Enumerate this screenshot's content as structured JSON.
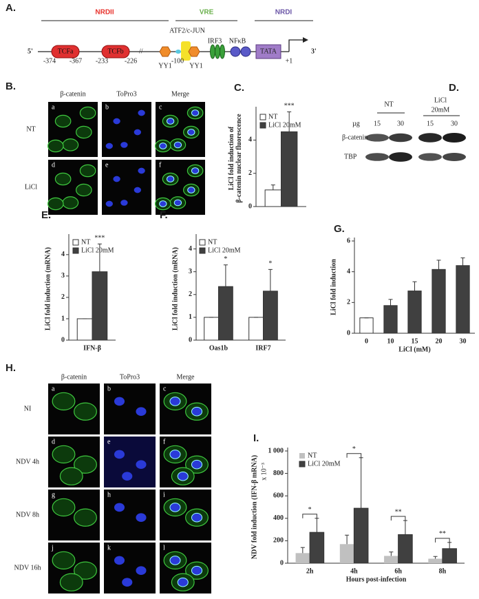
{
  "panel_a": {
    "label": "A.",
    "regions": [
      "NRDII",
      "VRE",
      "NRDI"
    ],
    "ends": [
      "5'",
      "3'"
    ],
    "boxes": [
      "TCFa",
      "TCFb",
      "TATA"
    ],
    "factors": [
      "ATF2/c-JUN",
      "IRF3",
      "NFκB",
      "YY1",
      "YY1"
    ],
    "positions": [
      "-374",
      "-367",
      "-233",
      "-226",
      "-100",
      "+1"
    ]
  },
  "panel_b": {
    "label": "B.",
    "columns": [
      "β-catenin",
      "ToPro3",
      "Merge"
    ],
    "rows": [
      "NT",
      "LiCl"
    ],
    "letters": [
      "a",
      "b",
      "c",
      "d",
      "e",
      "f"
    ]
  },
  "panel_d": {
    "label": "D.",
    "groups": [
      "NT",
      "LiCl"
    ],
    "group_note": "20mM",
    "unit": "µg",
    "lanes": [
      "15",
      "30",
      "15",
      "30"
    ],
    "rows": [
      "β-catenin",
      "TBP"
    ]
  },
  "panel_h": {
    "label": "H.",
    "columns": [
      "β-catenin",
      "ToPro3",
      "Merge"
    ],
    "rows": [
      "NI",
      "NDV 4h",
      "NDV 8h",
      "NDV 16h"
    ],
    "letters": [
      "a",
      "b",
      "c",
      "d",
      "e",
      "f",
      "g",
      "h",
      "i",
      "j",
      "k",
      "l"
    ]
  },
  "chart_data": [
    {
      "type": "bar",
      "label": "C.",
      "ylabel": [
        "LiCl fold induction of",
        "β-catenin nuclear fluorescence"
      ],
      "categories": [
        null
      ],
      "series": [
        {
          "name": "NT",
          "color": "#ffffff",
          "values": [
            1
          ],
          "errors": [
            0.3
          ]
        },
        {
          "name": "LiCl 20mM",
          "color": "#404040",
          "values": [
            4.5
          ],
          "errors": [
            1.2
          ]
        }
      ],
      "annotations": [
        "***"
      ],
      "ylim": [
        0,
        5.8
      ],
      "yticks": [
        0,
        2,
        4
      ],
      "legend": true
    },
    {
      "type": "bar",
      "label": "E.",
      "ylabel": [
        "LiCl fold induction (mRNA)"
      ],
      "categories": [
        "IFN-β"
      ],
      "series": [
        {
          "name": "NT",
          "color": "#ffffff",
          "values": [
            1
          ],
          "errors": [
            0
          ]
        },
        {
          "name": "LiCl 20mM",
          "color": "#404040",
          "values": [
            3.2
          ],
          "errors": [
            1.3
          ]
        }
      ],
      "annotations": [
        "***"
      ],
      "ylim": [
        0,
        4.8
      ],
      "yticks": [
        0,
        1,
        2,
        3,
        4
      ],
      "legend": true
    },
    {
      "type": "bar",
      "label": "F.",
      "ylabel": [
        "LiCl fold induction (mRNA)"
      ],
      "categories": [
        "Oas1b",
        "IRF7"
      ],
      "series": [
        {
          "name": "NT",
          "color": "#ffffff",
          "values": [
            1,
            1
          ],
          "errors": [
            0,
            0
          ]
        },
        {
          "name": "LiCl 20mM",
          "color": "#404040",
          "values": [
            2.35,
            2.15
          ],
          "errors": [
            0.95,
            0.95
          ]
        }
      ],
      "annotations": [
        "*",
        "*"
      ],
      "ylim": [
        0,
        4.5
      ],
      "yticks": [
        0,
        1,
        2,
        3,
        4
      ],
      "legend": true
    },
    {
      "type": "bar",
      "label": "G.",
      "ylabel": [
        "LiCl fold induction"
      ],
      "xlabel": "LiCl (mM)",
      "categories": [
        "0",
        "10",
        "15",
        "20",
        "30"
      ],
      "series": [
        {
          "colors": [
            "#ffffff",
            "#404040",
            "#404040",
            "#404040",
            "#404040"
          ],
          "values": [
            1,
            1.8,
            2.75,
            4.15,
            4.4
          ],
          "errors": [
            0,
            0.4,
            0.6,
            0.6,
            0.5
          ]
        }
      ],
      "ylim": [
        0,
        6
      ],
      "yticks": [
        0,
        2,
        4,
        6
      ],
      "legend": false
    },
    {
      "type": "bar",
      "label": "I.",
      "ylabel": [
        "NDV fold induction (IFN-β mRNA)"
      ],
      "y_unit": "x 10⁻³",
      "xlabel": "Hours post-infection",
      "categories": [
        "2h",
        "4h",
        "6h",
        "8h"
      ],
      "series": [
        {
          "name": "NT",
          "color": "#c0c0c0",
          "values": [
            90,
            170,
            65,
            40
          ],
          "errors": [
            50,
            80,
            35,
            20
          ]
        },
        {
          "name": "LiCl 20mM",
          "color": "#404040",
          "values": [
            275,
            490,
            255,
            130
          ],
          "errors": [
            125,
            450,
            125,
            55
          ]
        }
      ],
      "annotations": [
        "*",
        "*",
        "**",
        "**"
      ],
      "brackets": true,
      "ylim": [
        0,
        1000
      ],
      "yticks": [
        0,
        200,
        400,
        600,
        800,
        {
          "value": 1000,
          "label": "1 000"
        }
      ],
      "legend": true
    }
  ]
}
